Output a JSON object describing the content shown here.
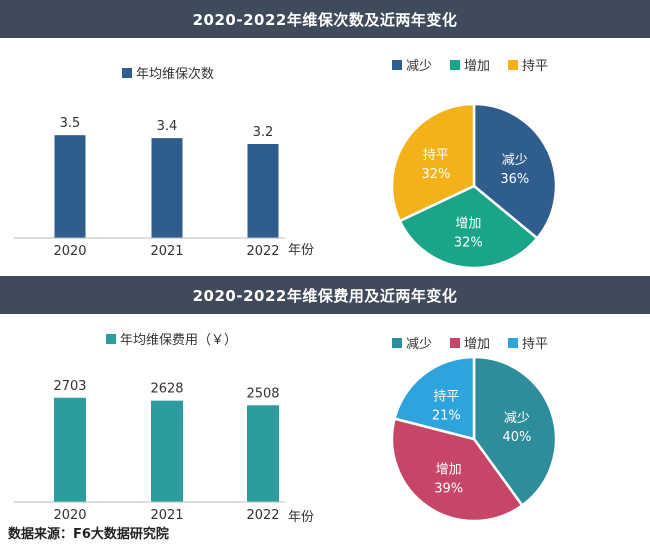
{
  "colors": {
    "header_bg": "#3f4a5a",
    "bar1": "#2f5d8e",
    "bar2": "#2a9d9f",
    "pie1_decrease": "#2f5d8e",
    "pie1_increase": "#1aa588",
    "pie1_flat": "#f4b21a",
    "pie2_decrease": "#2e8d9a",
    "pie2_increase": "#c74668",
    "pie2_flat": "#2fa3dc"
  },
  "chart_data": [
    {
      "type": "bar",
      "title": "2020-2022年维保次数及近两年变化",
      "legend": "年均维保次数",
      "categories": [
        "2020",
        "2021",
        "2022"
      ],
      "values": [
        3.5,
        3.4,
        3.2
      ],
      "value_labels": [
        "3.5",
        "3.4",
        "3.2"
      ],
      "xlabel": "年份",
      "ylim": [
        0,
        4.8
      ]
    },
    {
      "type": "pie",
      "legend": [
        "减少",
        "增加",
        "持平"
      ],
      "slices": [
        {
          "label": "减少",
          "value": 36,
          "text": "36%"
        },
        {
          "label": "增加",
          "value": 32,
          "text": "32%"
        },
        {
          "label": "持平",
          "value": 32,
          "text": "32%"
        }
      ]
    },
    {
      "type": "bar",
      "title": "2020-2022年维保费用及近两年变化",
      "legend": "年均维保费用（￥）",
      "categories": [
        "2020",
        "2021",
        "2022"
      ],
      "values": [
        2703,
        2628,
        2508
      ],
      "value_labels": [
        "2703",
        "2628",
        "2508"
      ],
      "xlabel": "年份",
      "ylim": [
        0,
        3760
      ]
    },
    {
      "type": "pie",
      "legend": [
        "减少",
        "增加",
        "持平"
      ],
      "slices": [
        {
          "label": "减少",
          "value": 40,
          "text": "40%"
        },
        {
          "label": "增加",
          "value": 39,
          "text": "39%"
        },
        {
          "label": "持平",
          "value": 21,
          "text": "21%"
        }
      ]
    }
  ],
  "source": "数据来源：F6大数据研究院"
}
